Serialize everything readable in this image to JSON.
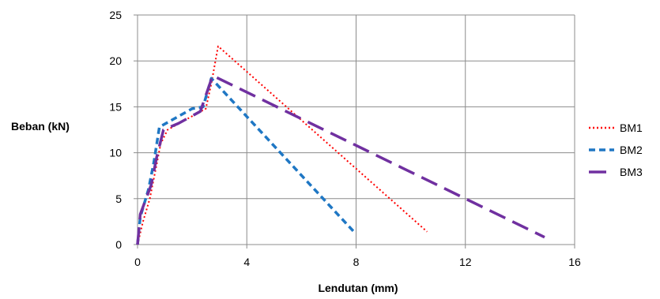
{
  "chart_data": {
    "type": "line",
    "xlabel": "Lendutan (mm)",
    "ylabel": "Beban (kN)",
    "xlim": [
      0,
      16
    ],
    "ylim": [
      0,
      25
    ],
    "xticks": [
      0,
      4,
      8,
      12,
      16
    ],
    "yticks": [
      0,
      5,
      10,
      15,
      20,
      25
    ],
    "grid": true,
    "legend_position": "right",
    "series": [
      {
        "name": "BM1",
        "color": "#ff0000",
        "dash": "dotted",
        "points": [
          [
            0,
            0
          ],
          [
            0.2,
            2.5
          ],
          [
            0.45,
            5
          ],
          [
            0.65,
            8
          ],
          [
            0.85,
            11
          ],
          [
            1.1,
            12.5
          ],
          [
            2.5,
            14.8
          ],
          [
            2.7,
            17.5
          ],
          [
            2.95,
            21.6
          ],
          [
            10.6,
            1.4
          ]
        ]
      },
      {
        "name": "BM2",
        "color": "#1f77c4",
        "dash": "short-dash",
        "points": [
          [
            0,
            0
          ],
          [
            0.1,
            3
          ],
          [
            0.4,
            6
          ],
          [
            0.6,
            9
          ],
          [
            0.8,
            12.8
          ],
          [
            1.1,
            13.3
          ],
          [
            2.0,
            14.8
          ],
          [
            2.4,
            15.0
          ],
          [
            2.7,
            18.1
          ],
          [
            7.95,
            1.3
          ]
        ]
      },
      {
        "name": "BM3",
        "color": "#7030a0",
        "dash": "long-dash",
        "points": [
          [
            0,
            0
          ],
          [
            0.1,
            3.3
          ],
          [
            0.5,
            6.5
          ],
          [
            0.7,
            9.5
          ],
          [
            0.95,
            12.5
          ],
          [
            1.5,
            13.2
          ],
          [
            2.3,
            14.5
          ],
          [
            2.75,
            18.4
          ],
          [
            14.9,
            0.8
          ]
        ]
      }
    ]
  }
}
